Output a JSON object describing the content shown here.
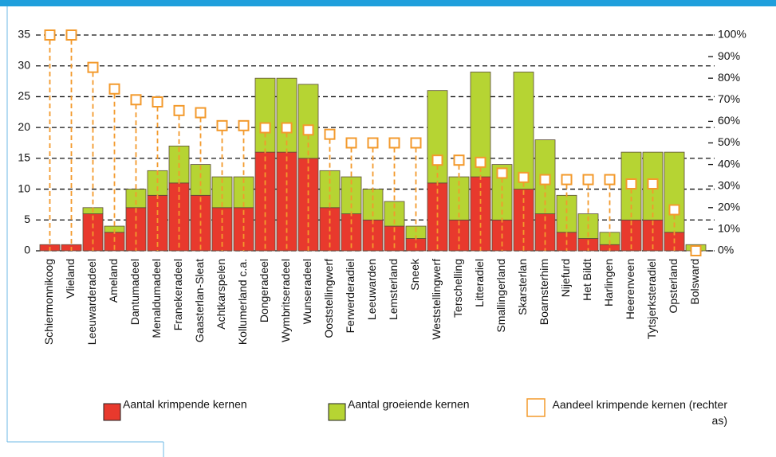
{
  "chart_data": {
    "type": "bar",
    "stacked": true,
    "categories": [
      "Schiermonnikoog",
      "Vlieland",
      "Leeuwarderadeel",
      "Ameland",
      "Dantumadeel",
      "Menaldumadeel",
      "Franekeradeel",
      "Gaasterlan-Sleat",
      "Achtkarspelen",
      "Kollumerland c.a.",
      "Dongeradeel",
      "Wymbritseradeel",
      "Wunseradeel",
      "Ooststellingwerf",
      "Ferwerderadiel",
      "Leeuwarden",
      "Lemsterland",
      "Sneek",
      "Weststellingwerf",
      "Terschelling",
      "Litteradiel",
      "Smallingerland",
      "Skarsterlan",
      "Boarnsterhim",
      "Nijefurd",
      "Het Bildt",
      "Harlingen",
      "Heerenveen",
      "Tytsjerksteradiel",
      "Opsterland",
      "Bolsward"
    ],
    "series": [
      {
        "name": "Aantal krimpende kernen",
        "color": "#e8392d",
        "values": [
          1,
          1,
          6,
          3,
          7,
          9,
          11,
          9,
          7,
          7,
          16,
          16,
          15,
          7,
          6,
          5,
          4,
          2,
          11,
          5,
          12,
          5,
          10,
          6,
          3,
          2,
          1,
          5,
          5,
          3,
          0
        ]
      },
      {
        "name": "Aantal groeiende kernen",
        "color": "#b6d433",
        "values": [
          0,
          0,
          1,
          1,
          3,
          4,
          6,
          5,
          5,
          5,
          12,
          12,
          12,
          6,
          6,
          5,
          4,
          2,
          15,
          7,
          17,
          9,
          19,
          12,
          6,
          4,
          2,
          11,
          11,
          13,
          1
        ]
      },
      {
        "name": "Aandeel krimpende kernen (rechter as)",
        "color": "#f39a2c",
        "axis": "y2",
        "values": [
          100,
          100,
          85,
          75,
          70,
          69,
          65,
          64,
          58,
          58,
          57,
          57,
          56,
          54,
          50,
          50,
          50,
          50,
          42,
          42,
          41,
          36,
          34,
          33,
          33,
          33,
          33,
          31,
          31,
          19,
          0
        ]
      }
    ],
    "ylim": [
      0,
      35
    ],
    "yticks": [
      0,
      5,
      10,
      15,
      20,
      25,
      30,
      35
    ],
    "y2lim": [
      0,
      100
    ],
    "y2ticks": [
      {
        "value": 0,
        "label": "0%"
      },
      {
        "value": 10,
        "label": "10%"
      },
      {
        "value": 20,
        "label": "20%"
      },
      {
        "value": 30,
        "label": "30%"
      },
      {
        "value": 40,
        "label": "40%"
      },
      {
        "value": 50,
        "label": "50%"
      },
      {
        "value": 60,
        "label": "60%"
      },
      {
        "value": 70,
        "label": "70%"
      },
      {
        "value": 80,
        "label": "80%"
      },
      {
        "value": 90,
        "label": "90%"
      },
      {
        "value": 100,
        "label": "100%"
      }
    ],
    "grid": true
  }
}
